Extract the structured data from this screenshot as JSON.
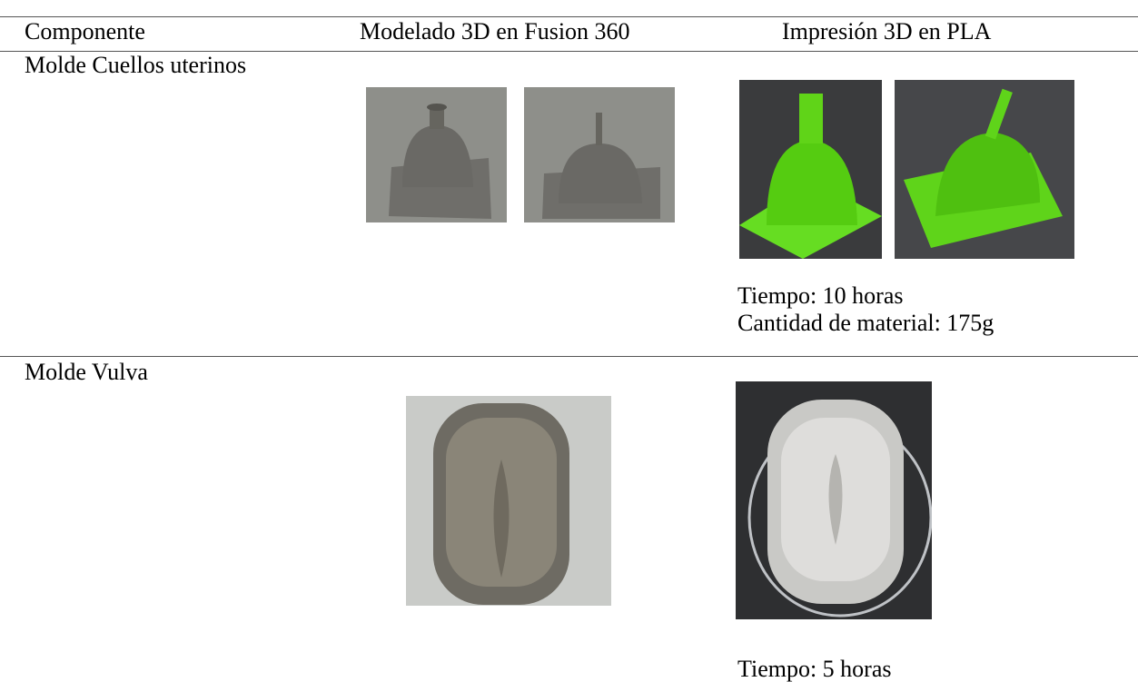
{
  "table": {
    "headers": [
      "Componente",
      "Modelado 3D en Fusion 360",
      "Impresión 3D en PLA"
    ],
    "rows": [
      {
        "component": "Molde Cuellos uterinos",
        "details": [
          "Tiempo: 10 horas",
          "Cantidad de material: 175g"
        ]
      },
      {
        "component": "Molde Vulva",
        "details": [
          "Tiempo: 5 horas"
        ]
      }
    ]
  }
}
